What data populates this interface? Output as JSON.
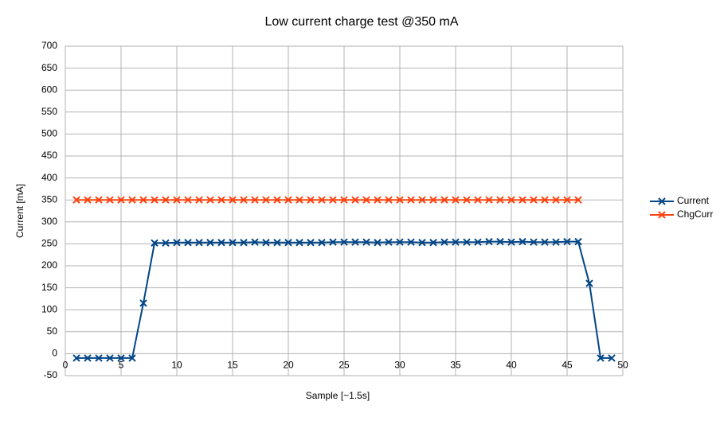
{
  "chart_data": {
    "type": "line",
    "title": "Low current charge test @350 mA",
    "x_label": "Sample [~1.5s]",
    "y_label": "Current [mA]",
    "x": [
      1,
      2,
      3,
      4,
      5,
      6,
      7,
      8,
      9,
      10,
      11,
      12,
      13,
      14,
      15,
      16,
      17,
      18,
      19,
      20,
      21,
      22,
      23,
      24,
      25,
      26,
      27,
      28,
      29,
      30,
      31,
      32,
      33,
      34,
      35,
      36,
      37,
      38,
      39,
      40,
      41,
      42,
      43,
      44,
      45,
      46,
      47,
      48,
      49
    ],
    "series": [
      {
        "name": "Current",
        "color": "#004586",
        "values": [
          -10,
          -10,
          -10,
          -10,
          -10,
          -10,
          115,
          252,
          252,
          253,
          253,
          253,
          253,
          253,
          253,
          253,
          254,
          253,
          253,
          253,
          253,
          253,
          253,
          254,
          254,
          254,
          254,
          253,
          254,
          254,
          254,
          253,
          253,
          254,
          254,
          254,
          254,
          255,
          255,
          254,
          255,
          254,
          254,
          254,
          255,
          255,
          160,
          -10,
          -10
        ]
      },
      {
        "name": "ChgCurr",
        "color": "#ff420e",
        "values": [
          350,
          350,
          350,
          350,
          350,
          350,
          350,
          350,
          350,
          350,
          350,
          350,
          350,
          350,
          350,
          350,
          350,
          350,
          350,
          350,
          350,
          350,
          350,
          350,
          350,
          350,
          350,
          350,
          350,
          350,
          350,
          350,
          350,
          350,
          350,
          350,
          350,
          350,
          350,
          350,
          350,
          350,
          350,
          350,
          350,
          350,
          null,
          null,
          null
        ]
      }
    ],
    "xlim": [
      0,
      50
    ],
    "xticks": [
      0,
      5,
      10,
      15,
      20,
      25,
      30,
      35,
      40,
      45,
      50
    ],
    "ylim": [
      -50,
      700
    ],
    "yticks": [
      -50,
      0,
      50,
      100,
      150,
      200,
      250,
      300,
      350,
      400,
      450,
      500,
      550,
      600,
      650,
      700
    ],
    "grid": true,
    "legend": "right"
  }
}
